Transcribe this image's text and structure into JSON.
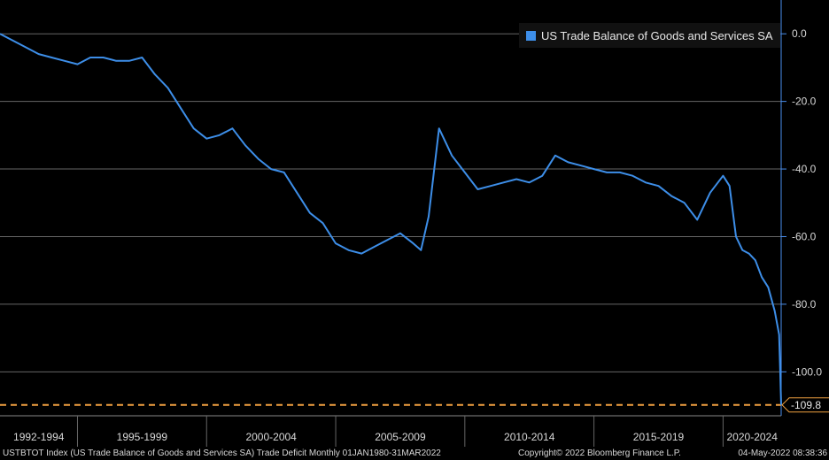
{
  "chart_data": {
    "type": "line",
    "title": "",
    "xlabel": "",
    "ylabel": "",
    "x_range": [
      1992.0,
      2022.25
    ],
    "ylim": [
      -113,
      10
    ],
    "y_ticks": [
      0,
      -20,
      -40,
      -60,
      -80,
      -100
    ],
    "y_tick_labels": [
      "0.0",
      "-20.0",
      "-40.0",
      "-60.0",
      "-80.0",
      "-100.0"
    ],
    "x_bands": [
      {
        "label": "1992-1994",
        "start": 1992,
        "end": 1995
      },
      {
        "label": "1995-1999",
        "start": 1995,
        "end": 2000
      },
      {
        "label": "2000-2004",
        "start": 2000,
        "end": 2005
      },
      {
        "label": "2005-2009",
        "start": 2005,
        "end": 2010
      },
      {
        "label": "2010-2014",
        "start": 2010,
        "end": 2015
      },
      {
        "label": "2015-2019",
        "start": 2015,
        "end": 2020
      },
      {
        "label": "2020-2024",
        "start": 2020,
        "end": 2022.25
      }
    ],
    "grid": true,
    "legend_position": "top-right",
    "series": [
      {
        "name": "US Trade Balance of Goods and Services SA",
        "color": "#3d8ee8",
        "x": [
          1992.0,
          1992.5,
          1993.0,
          1993.5,
          1994.0,
          1994.5,
          1995.0,
          1995.5,
          1996.0,
          1996.5,
          1997.0,
          1997.5,
          1998.0,
          1998.5,
          1999.0,
          1999.5,
          2000.0,
          2000.5,
          2001.0,
          2001.5,
          2002.0,
          2002.5,
          2003.0,
          2003.5,
          2004.0,
          2004.5,
          2005.0,
          2005.5,
          2006.0,
          2006.5,
          2007.0,
          2007.5,
          2008.0,
          2008.3,
          2008.6,
          2009.0,
          2009.5,
          2010.0,
          2010.5,
          2011.0,
          2011.5,
          2012.0,
          2012.5,
          2013.0,
          2013.5,
          2014.0,
          2014.5,
          2015.0,
          2015.5,
          2016.0,
          2016.5,
          2017.0,
          2017.5,
          2018.0,
          2018.5,
          2019.0,
          2019.5,
          2020.0,
          2020.25,
          2020.5,
          2020.75,
          2021.0,
          2021.25,
          2021.5,
          2021.75,
          2022.0,
          2022.17,
          2022.25
        ],
        "y": [
          0,
          -2,
          -4,
          -6,
          -7,
          -8,
          -9,
          -7,
          -7,
          -8,
          -8,
          -7,
          -12,
          -16,
          -22,
          -28,
          -31,
          -30,
          -28,
          -33,
          -37,
          -40,
          -41,
          -47,
          -53,
          -56,
          -62,
          -64,
          -65,
          -63,
          -61,
          -59,
          -62,
          -64,
          -54,
          -28,
          -36,
          -41,
          -46,
          -45,
          -44,
          -43,
          -44,
          -42,
          -36,
          -38,
          -39,
          -40,
          -41,
          -41,
          -42,
          -44,
          -45,
          -48,
          -50,
          -55,
          -47,
          -42,
          -45,
          -60,
          -64,
          -65,
          -67,
          -72,
          -75,
          -82,
          -89,
          -109.8
        ]
      }
    ],
    "last_value_label": "-109.8",
    "reference_line": {
      "value": -109.8,
      "color": "#f0a040"
    }
  },
  "footer": {
    "left": "USTBTOT Index (US Trade Balance of Goods and Services SA) Trade Deficit  Monthly 01JAN1980-31MAR2022",
    "center": "Copyright© 2022 Bloomberg Finance L.P.",
    "right": "04-May-2022 08:38:36"
  },
  "legend": {
    "label": "US Trade Balance of Goods and Services SA",
    "color": "#3d8ee8"
  }
}
